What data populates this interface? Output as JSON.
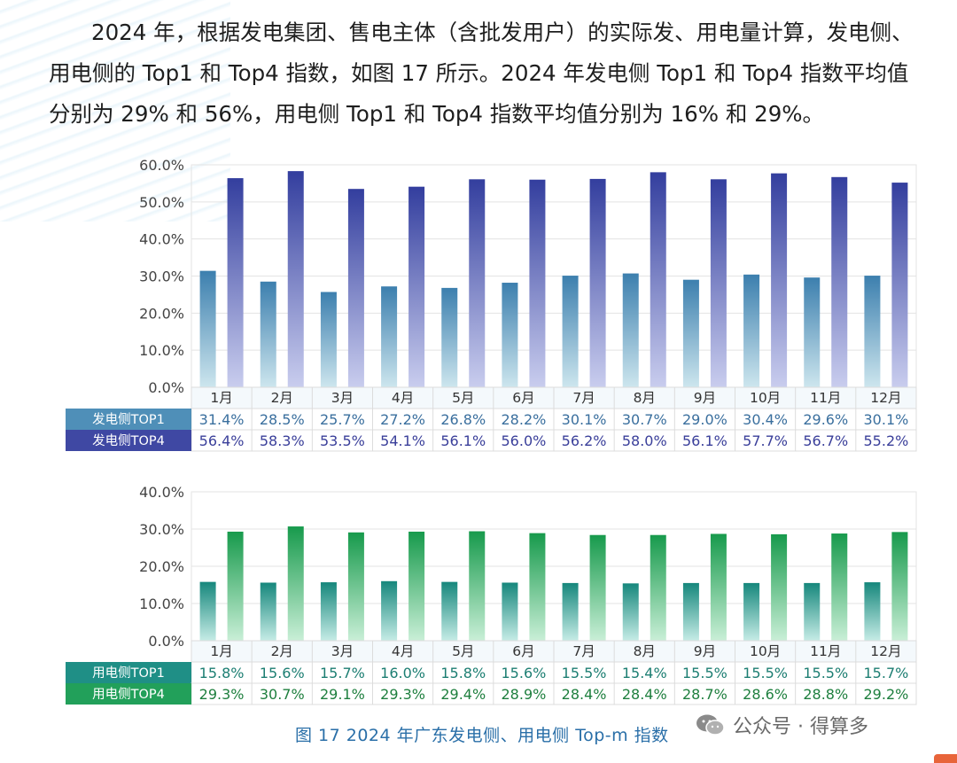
{
  "paragraph": {
    "line1": "2024 年，根据发电集团、售电主体（含批发用户）的实际发、用电量计算，发电侧、",
    "line2": "用电侧的 Top1 和 Top4 指数，如图 17 所示。2024 年发电侧 Top1 和 Top4 指数平均值",
    "line3": "分别为 29% 和 56%，用电侧 Top1 和 Top4 指数平均值分别为 16% 和 29%。"
  },
  "caption": "图 17  2024 年广东发电侧、用电侧 Top-m 指数",
  "watermark": "公众号 · 得算多",
  "chart_data": [
    {
      "type": "bar",
      "categories": [
        "1月",
        "2月",
        "3月",
        "4月",
        "5月",
        "6月",
        "7月",
        "8月",
        "9月",
        "10月",
        "11月",
        "12月"
      ],
      "ylim": [
        0,
        60
      ],
      "yticks": [
        "0.0%",
        "10.0%",
        "20.0%",
        "30.0%",
        "40.0%",
        "50.0%",
        "60.0%"
      ],
      "grid": true,
      "series": [
        {
          "name": "发电侧TOP1",
          "color": "#4f8fb8",
          "label_color": "#3a6f9e",
          "values": [
            31.4,
            28.5,
            25.7,
            27.2,
            26.8,
            28.2,
            30.1,
            30.7,
            29.0,
            30.4,
            29.6,
            30.1
          ],
          "labels": [
            "31.4%",
            "28.5%",
            "25.7%",
            "27.2%",
            "26.8%",
            "28.2%",
            "30.1%",
            "30.7%",
            "29.0%",
            "30.4%",
            "29.6%",
            "30.1%"
          ]
        },
        {
          "name": "发电侧TOP4",
          "color": "#3f48a3",
          "label_color": "#3a3f9a",
          "values": [
            56.4,
            58.3,
            53.5,
            54.1,
            56.1,
            56.0,
            56.2,
            58.0,
            56.1,
            57.7,
            56.7,
            55.2
          ],
          "labels": [
            "56.4%",
            "58.3%",
            "53.5%",
            "54.1%",
            "56.1%",
            "56.0%",
            "56.2%",
            "58.0%",
            "56.1%",
            "57.7%",
            "56.7%",
            "55.2%"
          ]
        }
      ]
    },
    {
      "type": "bar",
      "categories": [
        "1月",
        "2月",
        "3月",
        "4月",
        "5月",
        "6月",
        "7月",
        "8月",
        "9月",
        "10月",
        "11月",
        "12月"
      ],
      "ylim": [
        0,
        40
      ],
      "yticks": [
        "0.0%",
        "10.0%",
        "20.0%",
        "30.0%",
        "40.0%"
      ],
      "grid": true,
      "series": [
        {
          "name": "用电侧TOP1",
          "color": "#1f8f86",
          "label_color": "#1c7e72",
          "values": [
            15.8,
            15.6,
            15.7,
            16.0,
            15.8,
            15.6,
            15.5,
            15.4,
            15.5,
            15.5,
            15.5,
            15.7
          ],
          "labels": [
            "15.8%",
            "15.6%",
            "15.7%",
            "16.0%",
            "15.8%",
            "15.6%",
            "15.5%",
            "15.4%",
            "15.5%",
            "15.5%",
            "15.5%",
            "15.7%"
          ]
        },
        {
          "name": "用电侧TOP4",
          "color": "#22a05a",
          "label_color": "#1e7f3e",
          "values": [
            29.3,
            30.7,
            29.1,
            29.3,
            29.4,
            28.9,
            28.4,
            28.4,
            28.7,
            28.6,
            28.8,
            29.2
          ],
          "labels": [
            "29.3%",
            "30.7%",
            "29.1%",
            "29.3%",
            "29.4%",
            "28.9%",
            "28.4%",
            "28.4%",
            "28.7%",
            "28.6%",
            "28.8%",
            "29.2%"
          ]
        }
      ]
    }
  ]
}
